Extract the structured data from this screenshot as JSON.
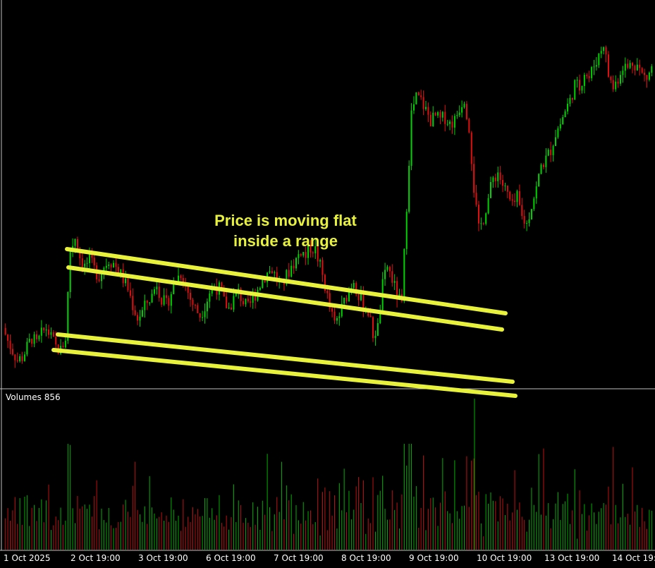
{
  "chart_data": {
    "type": "candlestick",
    "annotation": [
      "Price is moving flat",
      "inside a range"
    ],
    "volume_label": "Volumes 856",
    "x_ticks": [
      "1 Oct 2025",
      "2 Oct 19:00",
      "3 Oct 19:00",
      "6 Oct 19:00",
      "7 Oct 19:00",
      "8 Oct 19:00",
      "9 Oct 19:00",
      "10 Oct 19:00",
      "13 Oct 19:00",
      "14 Oct 19:"
    ],
    "colors": {
      "background": "#000000",
      "bull": "#00d400",
      "bear": "#e01010",
      "channel": "#e8f23a",
      "volume_bull": "#00b000",
      "volume_bear": "#c01010",
      "grid_border": "#c0c0c0"
    },
    "price_path": [
      0.12,
      0.08,
      0.05,
      0.02,
      0.03,
      0.06,
      0.09,
      0.07,
      0.1,
      0.12,
      0.09,
      0.06,
      0.05,
      0.09,
      0.36,
      0.4,
      0.34,
      0.31,
      0.33,
      0.3,
      0.28,
      0.31,
      0.33,
      0.32,
      0.3,
      0.27,
      0.24,
      0.19,
      0.15,
      0.17,
      0.2,
      0.22,
      0.26,
      0.21,
      0.19,
      0.23,
      0.27,
      0.29,
      0.25,
      0.21,
      0.18,
      0.16,
      0.19,
      0.23,
      0.25,
      0.24,
      0.2,
      0.18,
      0.21,
      0.23,
      0.2,
      0.18,
      0.21,
      0.24,
      0.27,
      0.29,
      0.3,
      0.27,
      0.25,
      0.28,
      0.31,
      0.33,
      0.36,
      0.34,
      0.37,
      0.36,
      0.31,
      0.25,
      0.18,
      0.13,
      0.16,
      0.2,
      0.24,
      0.27,
      0.22,
      0.19,
      0.17,
      0.1,
      0.12,
      0.25,
      0.31,
      0.27,
      0.22,
      0.19,
      0.5,
      0.78,
      0.83,
      0.82,
      0.79,
      0.76,
      0.77,
      0.76,
      0.77,
      0.75,
      0.76,
      0.8,
      0.83,
      0.74,
      0.55,
      0.42,
      0.46,
      0.52,
      0.58,
      0.6,
      0.56,
      0.53,
      0.49,
      0.52,
      0.46,
      0.44,
      0.5,
      0.55,
      0.62,
      0.64,
      0.67,
      0.72,
      0.75,
      0.79,
      0.82,
      0.87,
      0.86,
      0.91,
      0.89,
      0.93,
      0.96,
      1.0,
      0.9,
      0.86,
      0.89,
      0.93,
      0.92,
      0.94,
      0.93,
      0.9,
      0.89,
      0.92
    ],
    "price_range": [
      0.0,
      1.0
    ]
  }
}
